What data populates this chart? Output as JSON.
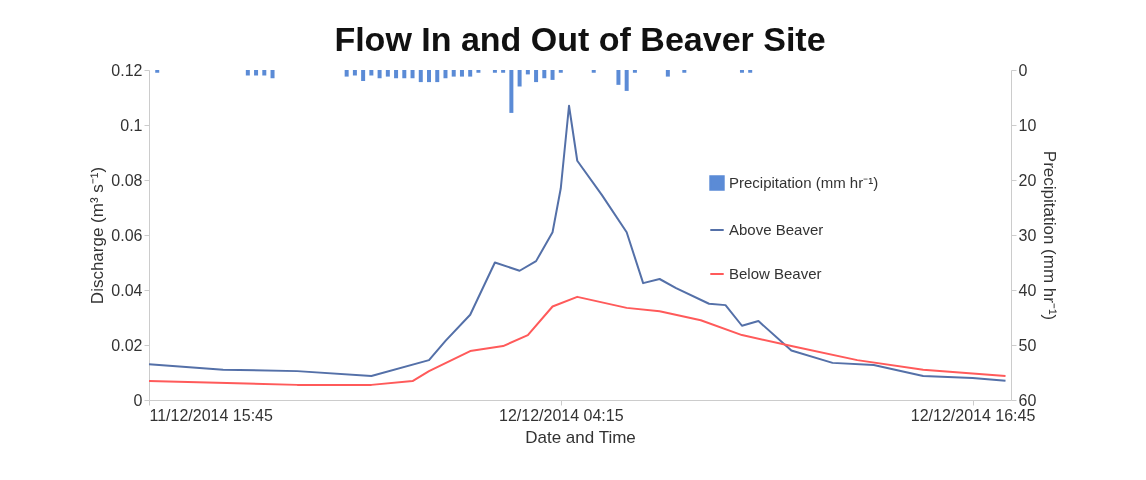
{
  "chart_data": {
    "type": "line",
    "title": "Flow In and Out of Beaver Site",
    "xlabel": "Date and Time",
    "ylabel": "Discharge  (m³ s⁻¹)",
    "y2label": "Precipitation (mm hr⁻¹)",
    "xlim": [
      "2014-12-11T15:45",
      "2014-12-12T17:55"
    ],
    "xticks": [
      {
        "value": "2014-12-11T15:45",
        "label": "11/12/2014 15:45"
      },
      {
        "value": "2014-12-12T04:15",
        "label": "12/12/2014 04:15"
      },
      {
        "value": "2014-12-12T16:45",
        "label": "12/12/2014 16:45"
      }
    ],
    "ylim": [
      0,
      0.12
    ],
    "yticks": [
      0,
      0.02,
      0.04,
      0.06,
      0.08,
      0.1,
      0.12
    ],
    "y2lim": [
      60,
      0
    ],
    "y2ticks": [
      0,
      10,
      20,
      30,
      40,
      50,
      60
    ],
    "grid": false,
    "legend": "right",
    "series": [
      {
        "name": "Precipitation (mm hr⁻¹)",
        "type": "bar",
        "axis": "y2",
        "color": "#5b8bd6",
        "x": [
          "2014-12-11T16:00",
          "2014-12-11T18:45",
          "2014-12-11T19:00",
          "2014-12-11T19:15",
          "2014-12-11T19:30",
          "2014-12-11T21:45",
          "2014-12-11T22:00",
          "2014-12-11T22:15",
          "2014-12-11T22:30",
          "2014-12-11T22:45",
          "2014-12-11T23:00",
          "2014-12-11T23:15",
          "2014-12-11T23:30",
          "2014-12-11T23:45",
          "2014-12-12T00:00",
          "2014-12-12T00:15",
          "2014-12-12T00:30",
          "2014-12-12T00:45",
          "2014-12-12T01:00",
          "2014-12-12T01:15",
          "2014-12-12T01:30",
          "2014-12-12T01:45",
          "2014-12-12T02:15",
          "2014-12-12T02:30",
          "2014-12-12T02:45",
          "2014-12-12T03:00",
          "2014-12-12T03:15",
          "2014-12-12T03:30",
          "2014-12-12T03:45",
          "2014-12-12T04:00",
          "2014-12-12T04:15",
          "2014-12-12T05:15",
          "2014-12-12T06:00",
          "2014-12-12T06:15",
          "2014-12-12T06:30",
          "2014-12-12T07:30",
          "2014-12-12T08:00",
          "2014-12-12T09:45",
          "2014-12-12T10:00"
        ],
        "values": [
          0.5,
          1,
          1,
          1,
          1.5,
          1.2,
          1,
          2,
          1,
          1.5,
          1.2,
          1.5,
          1.5,
          1.5,
          2.2,
          2.2,
          2.2,
          1.5,
          1.2,
          1.2,
          1.2,
          0.5,
          0.5,
          0.5,
          7.8,
          3,
          0.8,
          2.2,
          1.5,
          1.8,
          0.5,
          0.5,
          2.7,
          3.8,
          0.5,
          1.2,
          0.5,
          0.5,
          0.5
        ]
      },
      {
        "name": "Above Beaver",
        "color": "#5470a8",
        "x": [
          "2014-12-11T15:45",
          "2014-12-11T18:00",
          "2014-12-11T20:15",
          "2014-12-11T22:30",
          "2014-12-12T00:15",
          "2014-12-12T00:45",
          "2014-12-12T01:30",
          "2014-12-12T02:15",
          "2014-12-12T03:00",
          "2014-12-12T03:30",
          "2014-12-12T04:00",
          "2014-12-12T04:15",
          "2014-12-12T04:30",
          "2014-12-12T04:45",
          "2014-12-12T05:30",
          "2014-12-12T06:15",
          "2014-12-12T06:45",
          "2014-12-12T07:15",
          "2014-12-12T07:45",
          "2014-12-12T08:45",
          "2014-12-12T09:15",
          "2014-12-12T09:45",
          "2014-12-12T10:15",
          "2014-12-12T11:15",
          "2014-12-12T12:30",
          "2014-12-12T13:45",
          "2014-12-12T15:15",
          "2014-12-12T16:45",
          "2014-12-12T17:45"
        ],
        "values": [
          0.013,
          0.011,
          0.0105,
          0.0087,
          0.0145,
          0.0215,
          0.031,
          0.05,
          0.047,
          0.0505,
          0.061,
          0.077,
          0.107,
          0.087,
          0.0745,
          0.061,
          0.0425,
          0.044,
          0.0407,
          0.035,
          0.0345,
          0.027,
          0.0287,
          0.018,
          0.0135,
          0.0127,
          0.0087,
          0.008,
          0.007
        ]
      },
      {
        "name": "Below Beaver",
        "color": "#ff5a5a",
        "x": [
          "2014-12-11T15:45",
          "2014-12-11T20:15",
          "2014-12-11T22:30",
          "2014-12-11T23:45",
          "2014-12-12T00:15",
          "2014-12-12T01:30",
          "2014-12-12T02:30",
          "2014-12-12T03:15",
          "2014-12-12T04:00",
          "2014-12-12T04:45",
          "2014-12-12T06:15",
          "2014-12-12T07:15",
          "2014-12-12T08:30",
          "2014-12-12T09:45",
          "2014-12-12T11:15",
          "2014-12-12T13:15",
          "2014-12-12T15:15",
          "2014-12-12T17:45"
        ],
        "values": [
          0.0069,
          0.0055,
          0.0055,
          0.0069,
          0.0105,
          0.0178,
          0.0196,
          0.0236,
          0.034,
          0.0375,
          0.0335,
          0.0323,
          0.029,
          0.0236,
          0.0196,
          0.0145,
          0.011,
          0.0087
        ]
      }
    ]
  }
}
